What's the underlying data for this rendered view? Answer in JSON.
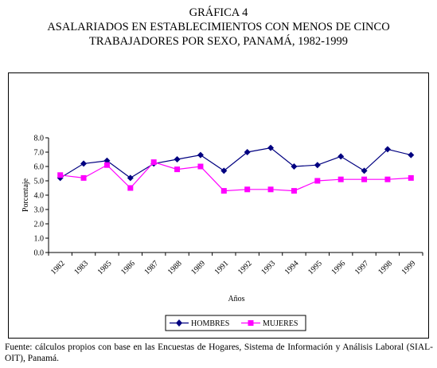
{
  "figure": {
    "label": "GRÁFICA 4",
    "title_line1": "ASALARIADOS EN ESTABLECIMIENTOS CON MENOS DE CINCO",
    "title_line2": "TRABAJADORES POR SEXO, PANAMÁ, 1982-1999"
  },
  "source_note": "Fuente: cálculos propios con base en las Encuestas de Hogares, Sistema de Información y Análisis Laboral (SIAL-OIT), Panamá.",
  "chart_data": {
    "type": "line",
    "title": "",
    "xlabel": "Años",
    "ylabel": "Porcentaje",
    "ylim": [
      0,
      8
    ],
    "y_ticks": [
      "0.0",
      "1.0",
      "2.0",
      "3.0",
      "4.0",
      "5.0",
      "6.0",
      "7.0",
      "8.0"
    ],
    "categories": [
      "1982",
      "1983",
      "1985",
      "1986",
      "1987",
      "1988",
      "1989",
      "1991",
      "1992",
      "1993",
      "1994",
      "1995",
      "1996",
      "1997",
      "1998",
      "1999"
    ],
    "grid": false,
    "legend_position": "bottom",
    "series": [
      {
        "name": "HOMBRES",
        "color": "#000080",
        "marker": "diamond",
        "values": [
          5.2,
          6.2,
          6.4,
          5.2,
          6.2,
          6.5,
          6.8,
          5.7,
          7.0,
          7.3,
          6.0,
          6.1,
          6.7,
          5.7,
          7.2,
          6.8
        ]
      },
      {
        "name": "MUJERES",
        "color": "#FF00FF",
        "marker": "square",
        "values": [
          5.4,
          5.2,
          6.1,
          4.5,
          6.3,
          5.8,
          6.0,
          4.3,
          4.4,
          4.4,
          4.3,
          5.0,
          5.1,
          5.1,
          5.1,
          5.2
        ]
      }
    ]
  }
}
